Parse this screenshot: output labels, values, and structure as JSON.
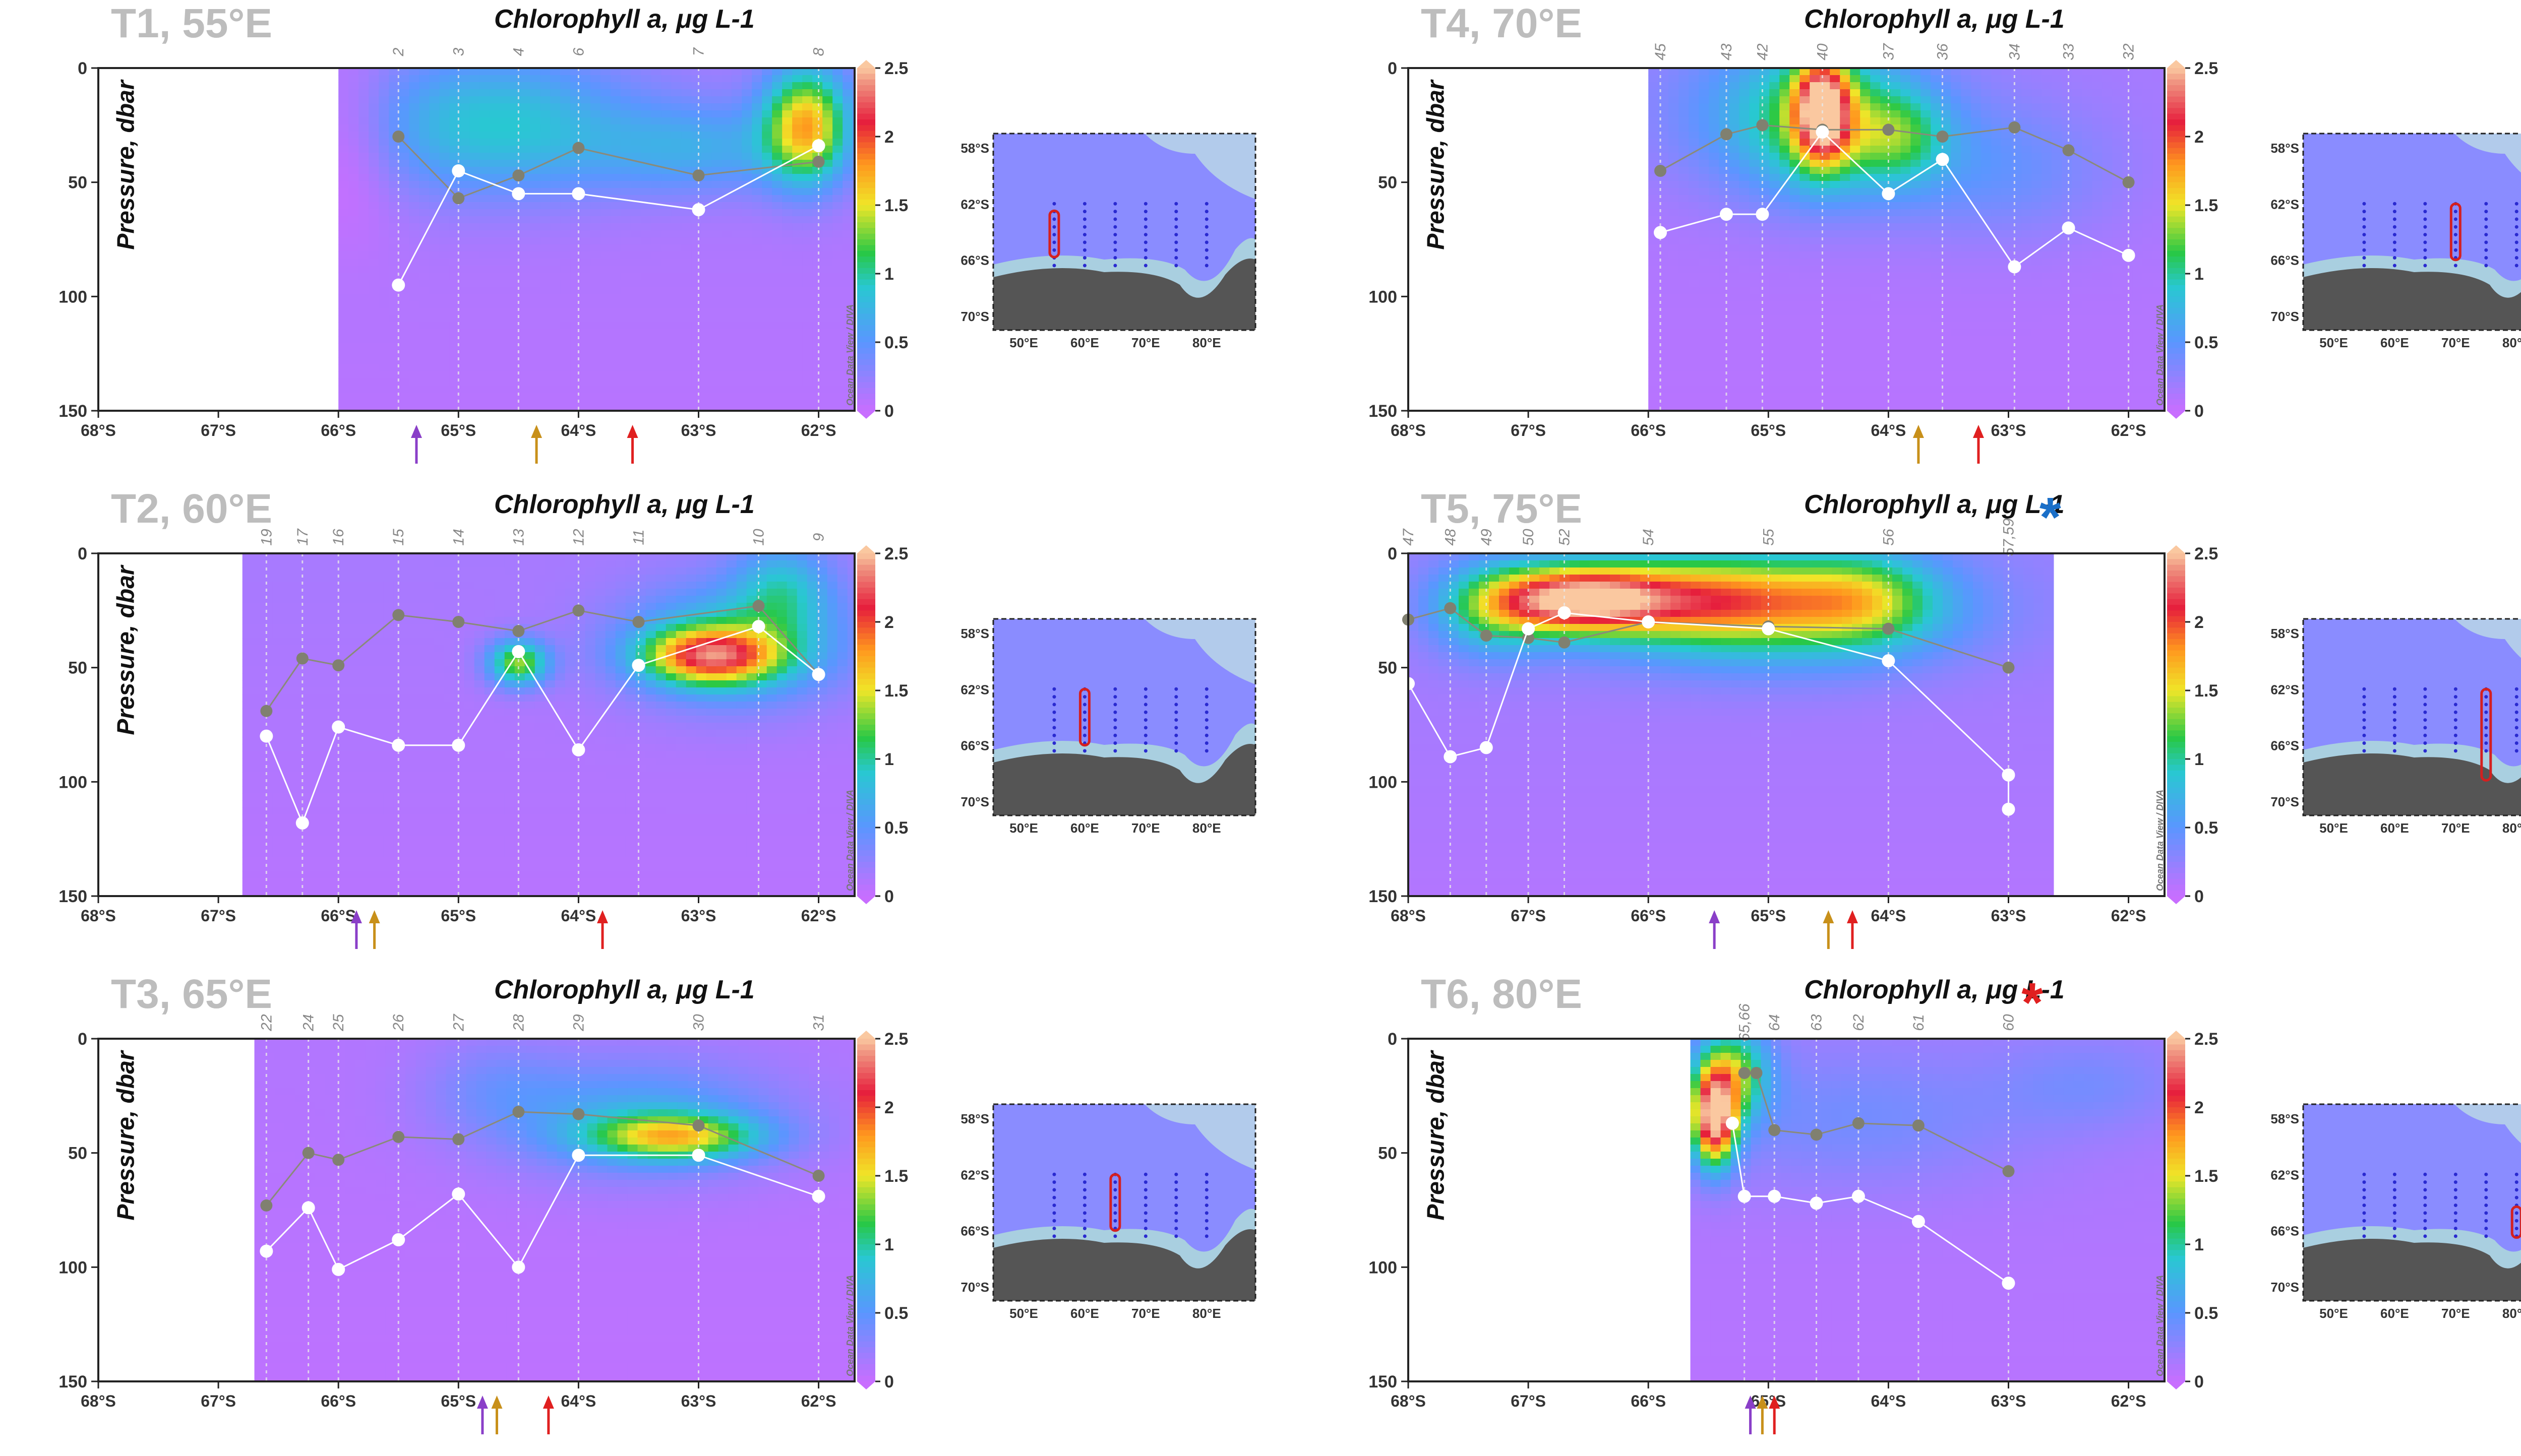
{
  "unit_label": "Chlorophyll a, μg L-1",
  "ylabel": "Pressure, dbar",
  "odv_label": "Ocean Data View / DIVA",
  "x_tick_labels": [
    "68°S",
    "67°S",
    "66°S",
    "65°S",
    "64°S",
    "63°S",
    "62°S"
  ],
  "y_tick_labels": [
    "0",
    "50",
    "100",
    "150"
  ],
  "colorbar_tick_labels": [
    "0",
    "0.5",
    "1",
    "1.5",
    "2",
    "2.5"
  ],
  "inset_lat_labels": [
    "58°S",
    "62°S",
    "66°S",
    "70°S"
  ],
  "inset_lon_labels": [
    "50°E",
    "60°E",
    "70°E",
    "80°E"
  ],
  "colors": {
    "arrow_purple": "#8a3fc8",
    "arrow_orange": "#c8901a",
    "arrow_red": "#e02020",
    "asterisk_blue": "#1a6fc8",
    "asterisk_red": "#e02020",
    "track_red": "#d42020"
  },
  "chart_data": [
    {
      "type": "heatmap",
      "title": "T1, 55°E",
      "xlim": [
        -68,
        -61.7
      ],
      "ylim": [
        150,
        0
      ],
      "clim": [
        0,
        2.5
      ],
      "data_start_lat": -66.0,
      "stations": [
        {
          "label": "2",
          "lat": -65.5
        },
        {
          "label": "3",
          "lat": -65.0
        },
        {
          "label": "4",
          "lat": -64.5
        },
        {
          "label": "6",
          "lat": -64.0
        },
        {
          "label": "7",
          "lat": -63.0
        },
        {
          "label": "8",
          "lat": -62.0
        }
      ],
      "white_line": [
        [
          -65.5,
          95
        ],
        [
          -65.0,
          45
        ],
        [
          -64.5,
          55
        ],
        [
          -64.0,
          55
        ],
        [
          -63.0,
          62
        ],
        [
          -62.0,
          34
        ]
      ],
      "grey_line": [
        [
          -65.5,
          30
        ],
        [
          -65.0,
          57
        ],
        [
          -64.5,
          47
        ],
        [
          -64.0,
          35
        ],
        [
          -63.0,
          47
        ],
        [
          -62.0,
          41
        ]
      ],
      "arrows": [
        {
          "color": "purple",
          "lat": -65.35
        },
        {
          "color": "orange",
          "lat": -64.35
        },
        {
          "color": "red",
          "lat": -63.55
        }
      ],
      "blobs": [
        {
          "lat": -62.1,
          "p": 25,
          "rlat": 0.35,
          "rp": 25,
          "v": 1.5
        },
        {
          "lat": -64.7,
          "p": 25,
          "rlat": 1.1,
          "rp": 30,
          "v": 0.75
        },
        {
          "lat": -63.0,
          "p": 35,
          "rlat": 0.9,
          "rp": 20,
          "v": 0.5
        },
        {
          "lat": -65.9,
          "p": 30,
          "rlat": 0.4,
          "rp": 40,
          "v": -0.25
        }
      ],
      "base": 0.15,
      "track_lon": 55,
      "track_lat": [
        -62.5,
        -65.8
      ]
    },
    {
      "type": "heatmap",
      "title": "T2, 60°E",
      "xlim": [
        -68,
        -61.7
      ],
      "ylim": [
        150,
        0
      ],
      "clim": [
        0,
        2.5
      ],
      "data_start_lat": -66.8,
      "stations": [
        {
          "label": "19",
          "lat": -66.6
        },
        {
          "label": "17",
          "lat": -66.3
        },
        {
          "label": "16",
          "lat": -66.0
        },
        {
          "label": "15",
          "lat": -65.5
        },
        {
          "label": "14",
          "lat": -65.0
        },
        {
          "label": "13",
          "lat": -64.5
        },
        {
          "label": "12",
          "lat": -64.0
        },
        {
          "label": "11",
          "lat": -63.5
        },
        {
          "label": "10",
          "lat": -62.5
        },
        {
          "label": "9",
          "lat": -62.0
        }
      ],
      "white_line": [
        [
          -66.6,
          80
        ],
        [
          -66.3,
          118
        ],
        [
          -66.0,
          76
        ],
        [
          -65.5,
          84
        ],
        [
          -65.0,
          84
        ],
        [
          -64.5,
          43
        ],
        [
          -64.0,
          86
        ],
        [
          -63.5,
          49
        ],
        [
          -62.5,
          32
        ],
        [
          -62.0,
          53
        ]
      ],
      "grey_line": [
        [
          -66.6,
          69
        ],
        [
          -66.3,
          46
        ],
        [
          -66.0,
          49
        ],
        [
          -65.5,
          27
        ],
        [
          -65.0,
          30
        ],
        [
          -64.5,
          34
        ],
        [
          -64.0,
          25
        ],
        [
          -63.5,
          30
        ],
        [
          -62.5,
          23
        ],
        [
          -62.0,
          53
        ]
      ],
      "arrows": [
        {
          "color": "purple",
          "lat": -65.85
        },
        {
          "color": "orange",
          "lat": -65.7
        },
        {
          "color": "red",
          "lat": -63.8
        }
      ],
      "blobs": [
        {
          "lat": -62.9,
          "p": 45,
          "rlat": 0.55,
          "rp": 12,
          "v": 1.55
        },
        {
          "lat": -62.7,
          "p": 40,
          "rlat": 0.9,
          "rp": 25,
          "v": 0.8
        },
        {
          "lat": -64.5,
          "p": 48,
          "rlat": 0.25,
          "rp": 10,
          "v": 1.2
        },
        {
          "lat": -62.3,
          "p": 15,
          "rlat": 0.4,
          "rp": 20,
          "v": 0.6
        }
      ],
      "base": 0.15,
      "track_lon": 60,
      "track_lat": [
        -62.0,
        -66.0
      ]
    },
    {
      "type": "heatmap",
      "title": "T3, 65°E",
      "xlim": [
        -68,
        -61.7
      ],
      "ylim": [
        150,
        0
      ],
      "clim": [
        0,
        2.5
      ],
      "data_start_lat": -66.7,
      "stations": [
        {
          "label": "22",
          "lat": -66.6
        },
        {
          "label": "24",
          "lat": -66.25
        },
        {
          "label": "25",
          "lat": -66.0
        },
        {
          "label": "26",
          "lat": -65.5
        },
        {
          "label": "27",
          "lat": -65.0
        },
        {
          "label": "28",
          "lat": -64.5
        },
        {
          "label": "29",
          "lat": -64.0
        },
        {
          "label": "30",
          "lat": -63.0
        },
        {
          "label": "31",
          "lat": -62.0
        }
      ],
      "white_line": [
        [
          -66.6,
          93
        ],
        [
          -66.25,
          74
        ],
        [
          -66.0,
          101
        ],
        [
          -65.5,
          88
        ],
        [
          -65.0,
          68
        ],
        [
          -64.5,
          100
        ],
        [
          -64.0,
          51
        ],
        [
          -63.0,
          51
        ],
        [
          -62.0,
          69
        ]
      ],
      "grey_line": [
        [
          -66.6,
          73
        ],
        [
          -66.25,
          50
        ],
        [
          -66.0,
          53
        ],
        [
          -65.5,
          43
        ],
        [
          -65.0,
          44
        ],
        [
          -64.5,
          32
        ],
        [
          -64.0,
          33
        ],
        [
          -63.0,
          38
        ],
        [
          -62.0,
          60
        ]
      ],
      "arrows": [
        {
          "color": "purple",
          "lat": -64.8
        },
        {
          "color": "orange",
          "lat": -64.68
        },
        {
          "color": "red",
          "lat": -64.25
        }
      ],
      "blobs": [
        {
          "lat": -63.2,
          "p": 43,
          "rlat": 0.7,
          "rp": 10,
          "v": 1.2
        },
        {
          "lat": -63.5,
          "p": 35,
          "rlat": 1.2,
          "rp": 25,
          "v": 0.55
        },
        {
          "lat": -64.7,
          "p": 20,
          "rlat": 0.6,
          "rp": 20,
          "v": 0.2
        }
      ],
      "base": 0.1,
      "track_lon": 65,
      "track_lat": [
        -62.0,
        -66.0
      ]
    },
    {
      "type": "heatmap",
      "title": "T4, 70°E",
      "xlim": [
        -68,
        -61.7
      ],
      "ylim": [
        150,
        0
      ],
      "clim": [
        0,
        2.5
      ],
      "data_start_lat": -66.0,
      "stations": [
        {
          "label": "45",
          "lat": -65.9
        },
        {
          "label": "43",
          "lat": -65.35
        },
        {
          "label": "42",
          "lat": -65.05
        },
        {
          "label": "40",
          "lat": -64.55
        },
        {
          "label": "37",
          "lat": -64.0
        },
        {
          "label": "36",
          "lat": -63.55
        },
        {
          "label": "34",
          "lat": -62.95
        },
        {
          "label": "33",
          "lat": -62.5
        },
        {
          "label": "32",
          "lat": -62.0
        }
      ],
      "white_line": [
        [
          -65.9,
          72
        ],
        [
          -65.35,
          64
        ],
        [
          -65.05,
          64
        ],
        [
          -64.55,
          28
        ],
        [
          -64.0,
          55
        ],
        [
          -63.55,
          40
        ],
        [
          -62.95,
          87
        ],
        [
          -62.5,
          70
        ],
        [
          -62.0,
          82
        ]
      ],
      "grey_line": [
        [
          -65.9,
          45
        ],
        [
          -65.35,
          29
        ],
        [
          -65.05,
          25
        ],
        [
          -64.55,
          27
        ],
        [
          -64.0,
          27
        ],
        [
          -63.55,
          30
        ],
        [
          -62.95,
          26
        ],
        [
          -62.5,
          36
        ],
        [
          -62.0,
          50
        ]
      ],
      "arrows": [
        {
          "color": "orange",
          "lat": -63.75
        },
        {
          "color": "red",
          "lat": -63.25
        }
      ],
      "blobs": [
        {
          "lat": -64.55,
          "p": 18,
          "rlat": 0.22,
          "rp": 22,
          "v": 1.9
        },
        {
          "lat": -64.55,
          "p": 25,
          "rlat": 0.6,
          "rp": 30,
          "v": 0.6
        },
        {
          "lat": -64.7,
          "p": 20,
          "rlat": 1.1,
          "rp": 35,
          "v": 0.6
        },
        {
          "lat": -63.1,
          "p": 45,
          "rlat": 1.0,
          "rp": 30,
          "v": 0.3
        },
        {
          "lat": -63.9,
          "p": 30,
          "rlat": 0.4,
          "rp": 20,
          "v": 0.6
        }
      ],
      "base": 0.15,
      "track_lon": 70,
      "track_lat": [
        -62.0,
        -66.0
      ]
    },
    {
      "type": "heatmap",
      "title": "T5, 75°E",
      "xlim": [
        -68,
        -61.7
      ],
      "ylim": [
        150,
        0
      ],
      "clim": [
        0,
        2.5
      ],
      "data_start_lat": -68.0,
      "data_end_lat": -62.7,
      "stations": [
        {
          "label": "47",
          "lat": -68.0
        },
        {
          "label": "48",
          "lat": -67.65
        },
        {
          "label": "49",
          "lat": -67.35
        },
        {
          "label": "50",
          "lat": -67.0
        },
        {
          "label": "52",
          "lat": -66.7
        },
        {
          "label": "54",
          "lat": -66.0
        },
        {
          "label": "55",
          "lat": -65.0
        },
        {
          "label": "56",
          "lat": -64.0
        },
        {
          "label": "57,59",
          "lat": -63.0
        }
      ],
      "white_line": [
        [
          -68.0,
          57
        ],
        [
          -67.65,
          89
        ],
        [
          -67.35,
          85
        ],
        [
          -67.0,
          33
        ],
        [
          -66.7,
          26
        ],
        [
          -66.0,
          30
        ],
        [
          -65.0,
          33
        ],
        [
          -64.0,
          47
        ],
        [
          -63.0,
          97
        ],
        [
          -63.0,
          112
        ]
      ],
      "grey_line": [
        [
          -68.0,
          29
        ],
        [
          -67.65,
          24
        ],
        [
          -67.35,
          36
        ],
        [
          -67.0,
          37
        ],
        [
          -66.7,
          39
        ],
        [
          -66.0,
          30
        ],
        [
          -65.0,
          32
        ],
        [
          -64.0,
          33
        ],
        [
          -63.0,
          50
        ]
      ],
      "arrows": [
        {
          "color": "purple",
          "lat": -65.45
        },
        {
          "color": "orange",
          "lat": -64.5
        },
        {
          "color": "red",
          "lat": -64.3
        }
      ],
      "asterisk": {
        "color": "blue",
        "lat": -62.7
      },
      "blobs": [
        {
          "lat": -66.6,
          "p": 20,
          "rlat": 0.7,
          "rp": 14,
          "v": 2.0
        },
        {
          "lat": -65.5,
          "p": 20,
          "rlat": 1.0,
          "rp": 18,
          "v": 1.0
        },
        {
          "lat": -65.0,
          "p": 25,
          "rlat": 1.5,
          "rp": 25,
          "v": 0.9
        },
        {
          "lat": -64.2,
          "p": 20,
          "rlat": 0.6,
          "rp": 20,
          "v": 0.7
        },
        {
          "lat": -67.3,
          "p": 25,
          "rlat": 0.5,
          "rp": 20,
          "v": 0.7
        }
      ],
      "base": 0.2,
      "track_lon": 75,
      "track_lat": [
        -62.0,
        -68.5
      ]
    },
    {
      "type": "heatmap",
      "title": "T6, 80°E",
      "xlim": [
        -68,
        -61.7
      ],
      "ylim": [
        150,
        0
      ],
      "clim": [
        0,
        2.5
      ],
      "data_start_lat": -65.65,
      "stations": [
        {
          "label": "65,66",
          "lat": -65.2
        },
        {
          "label": "64",
          "lat": -64.95
        },
        {
          "label": "63",
          "lat": -64.6
        },
        {
          "label": "62",
          "lat": -64.25
        },
        {
          "label": "61",
          "lat": -63.75
        },
        {
          "label": "60",
          "lat": -63.0
        }
      ],
      "white_line": [
        [
          -65.3,
          37
        ],
        [
          -65.2,
          69
        ],
        [
          -64.95,
          69
        ],
        [
          -64.6,
          72
        ],
        [
          -64.25,
          69
        ],
        [
          -63.75,
          80
        ],
        [
          -63.0,
          107
        ]
      ],
      "grey_line": [
        [
          -65.2,
          15
        ],
        [
          -65.1,
          15
        ],
        [
          -64.95,
          40
        ],
        [
          -64.6,
          42
        ],
        [
          -64.25,
          37
        ],
        [
          -63.75,
          38
        ],
        [
          -63.0,
          58
        ]
      ],
      "arrows": [
        {
          "color": "purple",
          "lat": -65.15
        },
        {
          "color": "orange",
          "lat": -65.05
        },
        {
          "color": "red",
          "lat": -64.95
        }
      ],
      "asterisk": {
        "color": "red",
        "lat": -62.85
      },
      "blobs": [
        {
          "lat": -65.45,
          "p": 35,
          "rlat": 0.18,
          "rp": 20,
          "v": 2.3
        },
        {
          "lat": -65.3,
          "p": 15,
          "rlat": 0.3,
          "rp": 20,
          "v": 1.1
        },
        {
          "lat": -64.3,
          "p": 35,
          "rlat": 1.5,
          "rp": 30,
          "v": 0.25
        },
        {
          "lat": -62.3,
          "p": 20,
          "rlat": 0.8,
          "rp": 20,
          "v": 0.2
        }
      ],
      "base": 0.15,
      "track_lon": 80,
      "track_lat": [
        -64.3,
        -66.5
      ]
    }
  ]
}
